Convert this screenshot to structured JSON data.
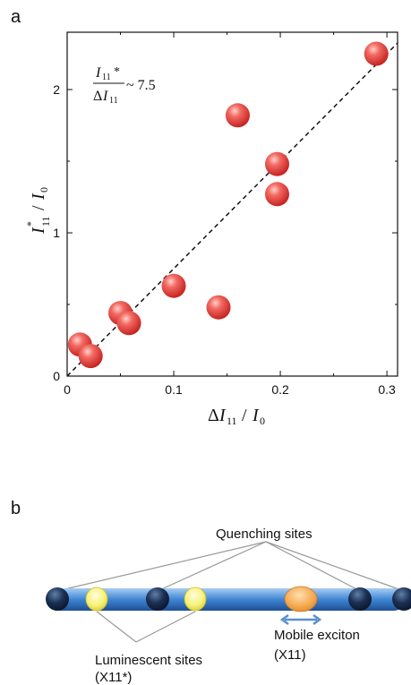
{
  "panel_a": {
    "label": "a",
    "chart_data": {
      "type": "scatter",
      "series": [
        {
          "points": [
            {
              "x": 0.012,
              "y": 0.22
            },
            {
              "x": 0.022,
              "y": 0.14
            },
            {
              "x": 0.05,
              "y": 0.44
            },
            {
              "x": 0.058,
              "y": 0.37
            },
            {
              "x": 0.1,
              "y": 0.63
            },
            {
              "x": 0.142,
              "y": 0.48
            },
            {
              "x": 0.16,
              "y": 1.82
            },
            {
              "x": 0.197,
              "y": 1.48
            },
            {
              "x": 0.197,
              "y": 1.27
            },
            {
              "x": 0.29,
              "y": 2.25
            }
          ]
        }
      ],
      "fit_line": {
        "x": [
          0.0,
          0.31
        ],
        "y": [
          0.0,
          2.325
        ]
      },
      "xlim": [
        0,
        0.31
      ],
      "ylim": [
        0,
        2.4
      ],
      "x_ticks": [
        "0",
        "0.1",
        "0.2",
        "0.3"
      ],
      "y_ticks": [
        "0",
        "1",
        "2"
      ],
      "xlabel": "ΔI11 / I0",
      "ylabel": "I*11 / I0",
      "annotation": "I11* / ΔI11 ~ 7.5",
      "colors": {
        "point": "#e8302f",
        "fit_line": "#111111"
      }
    }
  },
  "panel_b": {
    "label": "b",
    "quenching_label": "Quenching sites",
    "luminescent_label": "Luminescent sites",
    "luminescent_symbol": "(X11*)",
    "mobile_label": "Mobile exciton",
    "mobile_symbol": "(X11)",
    "colors": {
      "tube": "#3a7fd0",
      "quencher": "#14233f",
      "luminescent": "#f6f06a",
      "exciton": "#f3a84c",
      "arrow": "#5a8fd0"
    }
  }
}
